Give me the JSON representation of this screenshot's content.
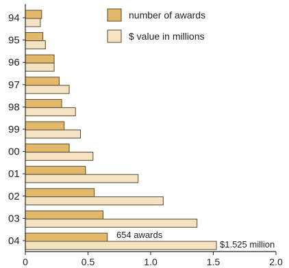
{
  "chart_data": {
    "type": "bar",
    "orientation": "horizontal",
    "categories": [
      "94",
      "95",
      "96",
      "97",
      "98",
      "99",
      "00",
      "01",
      "02",
      "03",
      "04"
    ],
    "series": [
      {
        "name": "number of awards",
        "color": "#e2b86a",
        "values": [
          0.13,
          0.14,
          0.23,
          0.27,
          0.29,
          0.31,
          0.35,
          0.48,
          0.55,
          0.62,
          0.654
        ]
      },
      {
        "name": "$ value in millions",
        "color": "#f3e3c0",
        "values": [
          0.12,
          0.16,
          0.23,
          0.35,
          0.4,
          0.44,
          0.54,
          0.9,
          1.1,
          1.37,
          1.525
        ]
      }
    ],
    "xlim": [
      0,
      2.0
    ],
    "xticks": [
      "0",
      "0.5",
      "1.0",
      "1.5",
      "2.0"
    ],
    "annotations": [
      "654 awards",
      "$1.525 million"
    ],
    "legend_position": "top-right",
    "grid": false
  }
}
